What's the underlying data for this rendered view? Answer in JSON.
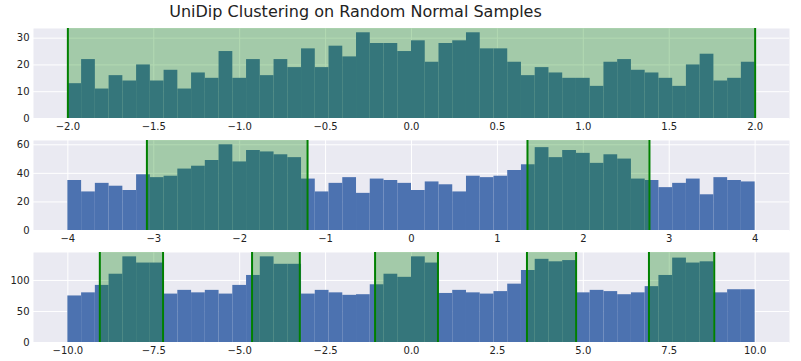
{
  "chart_data": [
    {
      "type": "histogram",
      "title": "UniDip Clustering on Random Normal Samples",
      "color": "#4C72B0",
      "grid": true,
      "bins": [
        -2,
        -1.92,
        -1.84,
        -1.76,
        -1.68,
        -1.6,
        -1.52,
        -1.44,
        -1.36,
        -1.28,
        -1.2,
        -1.12,
        -1.04,
        -0.96,
        -0.88,
        -0.8,
        -0.72,
        -0.64,
        -0.56,
        -0.48,
        -0.4,
        -0.32,
        -0.24,
        -0.16,
        -0.08,
        0,
        0.08,
        0.16,
        0.24,
        0.32,
        0.4,
        0.48,
        0.56,
        0.64,
        0.72,
        0.8,
        0.88,
        0.96,
        1.04,
        1.12,
        1.2,
        1.28,
        1.36,
        1.44,
        1.52,
        1.6,
        1.68,
        1.76,
        1.84,
        1.92,
        2
      ],
      "values": [
        13,
        22,
        11,
        16,
        14,
        20,
        14,
        18,
        11,
        17,
        15,
        25,
        15,
        22,
        16,
        22,
        19,
        26,
        19,
        27,
        23,
        32,
        28,
        28,
        25,
        29,
        21,
        28,
        29,
        32,
        26,
        26,
        21,
        16,
        19,
        17,
        15,
        15,
        12,
        21,
        22,
        18,
        17,
        15,
        12,
        20,
        24,
        14,
        15,
        21
      ],
      "intervals": [
        [
          -2,
          2
        ]
      ],
      "xlim": [
        -2.2,
        2.2
      ],
      "xticks": [
        {
          "value": -2,
          "label": "−2.0"
        },
        {
          "value": -1.5,
          "label": "−1.5"
        },
        {
          "value": -1,
          "label": "−1.0"
        },
        {
          "value": -0.5,
          "label": "−0.5"
        },
        {
          "value": 0,
          "label": "0.0"
        },
        {
          "value": 0.5,
          "label": "0.5"
        },
        {
          "value": 1,
          "label": "1.0"
        },
        {
          "value": 1.5,
          "label": "1.5"
        },
        {
          "value": 2,
          "label": "2.0"
        }
      ],
      "ylim": [
        0,
        33.6
      ],
      "yticks": [
        0,
        10,
        20,
        30
      ]
    },
    {
      "type": "histogram",
      "color": "#4C72B0",
      "grid": true,
      "bins": [
        -4,
        -3.84,
        -3.68,
        -3.52,
        -3.36,
        -3.2,
        -3.04,
        -2.88,
        -2.72,
        -2.56,
        -2.4,
        -2.24,
        -2.08,
        -1.92,
        -1.76,
        -1.6,
        -1.44,
        -1.28,
        -1.12,
        -0.96,
        -0.8,
        -0.64,
        -0.48,
        -0.32,
        -0.16,
        0,
        0.16,
        0.32,
        0.48,
        0.64,
        0.8,
        0.96,
        1.12,
        1.28,
        1.44,
        1.6,
        1.76,
        1.92,
        2.08,
        2.24,
        2.4,
        2.56,
        2.72,
        2.88,
        3.04,
        3.2,
        3.36,
        3.52,
        3.68,
        3.84,
        4
      ],
      "values": [
        35,
        27,
        33,
        31,
        28,
        39,
        37,
        38,
        43,
        45,
        49,
        60,
        48,
        56,
        55,
        53,
        51,
        36,
        27,
        33,
        37,
        26,
        36,
        35,
        33,
        28,
        34,
        32,
        27,
        38,
        37,
        38,
        42,
        46,
        58,
        51,
        56,
        54,
        47,
        53,
        50,
        36,
        35,
        30,
        33,
        36,
        25,
        37,
        35,
        34
      ],
      "intervals": [
        [
          -3.08,
          -1.21
        ],
        [
          1.35,
          2.77
        ]
      ],
      "xlim": [
        -4.4,
        4.4
      ],
      "xticks": [
        {
          "value": -4,
          "label": "−4"
        },
        {
          "value": -3,
          "label": "−3"
        },
        {
          "value": -2,
          "label": "−2"
        },
        {
          "value": -1,
          "label": "−1"
        },
        0,
        1,
        2,
        3,
        4
      ],
      "ylim": [
        0,
        63
      ],
      "yticks": [
        0,
        20,
        40,
        60
      ]
    },
    {
      "type": "histogram",
      "color": "#4C72B0",
      "grid": true,
      "bins": [
        -10,
        -9.6,
        -9.2,
        -8.8,
        -8.4,
        -8,
        -7.6,
        -7.2,
        -6.8,
        -6.4,
        -6,
        -5.6,
        -5.2,
        -4.8,
        -4.4,
        -4,
        -3.6,
        -3.2,
        -2.8,
        -2.4,
        -2,
        -1.6,
        -1.2,
        -0.8,
        -0.4,
        0,
        0.4,
        0.8,
        1.2,
        1.6,
        2,
        2.4,
        2.8,
        3.2,
        3.6,
        4,
        4.4,
        4.8,
        5.2,
        5.6,
        6,
        6.4,
        6.8,
        7.2,
        7.6,
        8,
        8.4,
        8.8,
        9.2,
        9.6,
        10
      ],
      "values": [
        75,
        80,
        92,
        110,
        138,
        128,
        128,
        78,
        84,
        80,
        84,
        78,
        92,
        108,
        138,
        126,
        126,
        78,
        84,
        80,
        76,
        77,
        93,
        110,
        105,
        138,
        128,
        79,
        84,
        80,
        78,
        82,
        94,
        116,
        134,
        130,
        132,
        80,
        84,
        82,
        77,
        80,
        90,
        108,
        136,
        128,
        130,
        80,
        85,
        85
      ],
      "intervals": [
        [
          -9.07,
          -7.23
        ],
        [
          -4.64,
          -3.25
        ],
        [
          -1.06,
          0.77
        ],
        [
          3.36,
          4.79
        ],
        [
          6.91,
          8.81
        ]
      ],
      "xlim": [
        -11,
        11
      ],
      "xticks": [
        {
          "value": -10,
          "label": "−10.0"
        },
        {
          "value": -7.5,
          "label": "−7.5"
        },
        {
          "value": -5,
          "label": "−5.0"
        },
        {
          "value": -2.5,
          "label": "−2.5"
        },
        {
          "value": 0,
          "label": "0.0"
        },
        {
          "value": 2.5,
          "label": "2.5"
        },
        {
          "value": 5,
          "label": "5.0"
        },
        {
          "value": 7.5,
          "label": "7.5"
        },
        {
          "value": 10,
          "label": "10.0"
        }
      ],
      "ylim": [
        0,
        145
      ],
      "yticks": [
        0,
        50,
        100
      ]
    }
  ]
}
